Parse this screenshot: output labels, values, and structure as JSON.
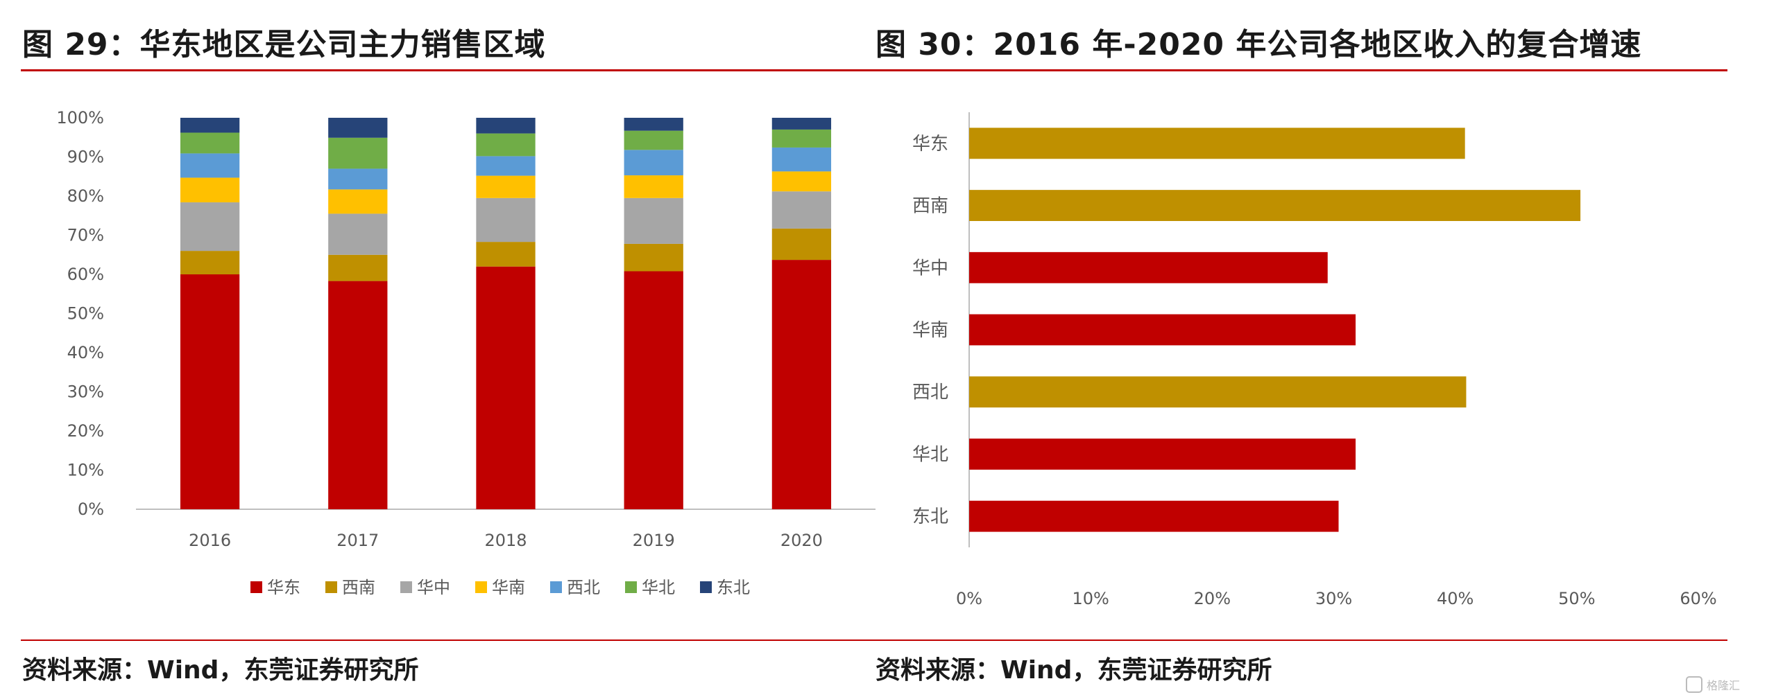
{
  "titles": {
    "left": "图 29：华东地区是公司主力销售区域",
    "right": "图 30：2016 年-2020 年公司各地区收入的复合增速"
  },
  "sources": {
    "left": "资料来源：Wind，东莞证券研究所",
    "right": "资料来源：Wind，东莞证券研究所"
  },
  "chart_data": [
    {
      "type": "bar",
      "stacked": true,
      "percent": true,
      "categories": [
        "2016",
        "2017",
        "2018",
        "2019",
        "2020"
      ],
      "ylim": [
        0,
        100
      ],
      "yticks": [
        "0%",
        "10%",
        "20%",
        "30%",
        "40%",
        "50%",
        "60%",
        "70%",
        "80%",
        "90%",
        "100%"
      ],
      "legend_position": "bottom",
      "series": [
        {
          "name": "华东",
          "color": "#C00000",
          "values": [
            60,
            58.3,
            62,
            60.8,
            63.7
          ]
        },
        {
          "name": "西南",
          "color": "#BF9000",
          "values": [
            6,
            6.7,
            6.3,
            7,
            8
          ]
        },
        {
          "name": "华中",
          "color": "#A6A6A6",
          "values": [
            12.4,
            10.5,
            11.2,
            11.7,
            9.5
          ]
        },
        {
          "name": "华南",
          "color": "#FFC000",
          "values": [
            6.3,
            6.2,
            5.7,
            5.8,
            5.1
          ]
        },
        {
          "name": "西北",
          "color": "#5B9BD5",
          "values": [
            6.2,
            5.3,
            5,
            6.5,
            6.1
          ]
        },
        {
          "name": "华北",
          "color": "#70AD47",
          "values": [
            5.3,
            7.9,
            5.8,
            4.9,
            4.6
          ]
        },
        {
          "name": "东北",
          "color": "#264478",
          "values": [
            3.8,
            5.1,
            4,
            3.3,
            3
          ]
        }
      ]
    },
    {
      "type": "bar",
      "orientation": "horizontal",
      "categories": [
        "华东",
        "西南",
        "华中",
        "华南",
        "西北",
        "华北",
        "东北"
      ],
      "values": [
        40.8,
        50.3,
        29.5,
        31.8,
        40.9,
        31.8,
        30.4
      ],
      "colors": [
        "#BF9000",
        "#BF9000",
        "#C00000",
        "#C00000",
        "#BF9000",
        "#C00000",
        "#C00000"
      ],
      "xlim": [
        0,
        60
      ],
      "xticks": [
        "0%",
        "10%",
        "20%",
        "30%",
        "40%",
        "50%",
        "60%"
      ]
    }
  ],
  "watermark": "格隆汇"
}
